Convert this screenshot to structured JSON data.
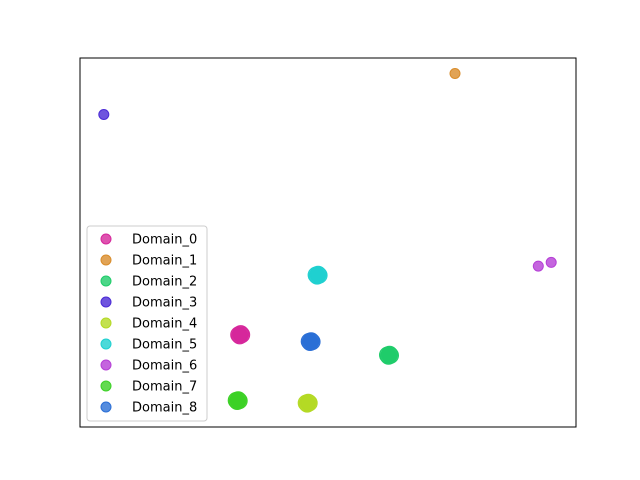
{
  "chart_data": {
    "type": "scatter",
    "title": "",
    "xlabel": "",
    "ylabel": "",
    "axes_ticks_visible": false,
    "grid": false,
    "legend_placement": "lower-left",
    "xlim": [
      0,
      100
    ],
    "ylim": [
      0,
      100
    ],
    "series": [
      {
        "name": "Domain_0",
        "color": "#d6279b",
        "points": [
          [
            32.0,
            25.0
          ],
          [
            32.4,
            25.3
          ],
          [
            32.2,
            24.7
          ],
          [
            32.6,
            25.0
          ]
        ]
      },
      {
        "name": "Domain_1",
        "color": "#d98c2a",
        "points": [
          [
            75.6,
            95.8
          ]
        ]
      },
      {
        "name": "Domain_2",
        "color": "#1fcc6a",
        "points": [
          [
            62.0,
            19.5
          ],
          [
            62.4,
            19.7
          ],
          [
            62.2,
            19.2
          ],
          [
            62.6,
            19.4
          ]
        ]
      },
      {
        "name": "Domain_3",
        "color": "#4b2bd6",
        "points": [
          [
            4.8,
            84.7
          ]
        ]
      },
      {
        "name": "Domain_4",
        "color": "#b4d924",
        "points": [
          [
            45.6,
            6.5
          ],
          [
            46.0,
            6.7
          ],
          [
            45.8,
            6.2
          ],
          [
            46.2,
            6.5
          ]
        ]
      },
      {
        "name": "Domain_5",
        "color": "#1fd0d0",
        "points": [
          [
            47.6,
            41.2
          ],
          [
            48.0,
            41.4
          ],
          [
            47.8,
            40.9
          ],
          [
            48.2,
            41.1
          ]
        ]
      },
      {
        "name": "Domain_6",
        "color": "#b53fd6",
        "points": [
          [
            92.4,
            43.6
          ],
          [
            95.0,
            44.6
          ]
        ]
      },
      {
        "name": "Domain_7",
        "color": "#3cd126",
        "points": [
          [
            31.5,
            7.2
          ],
          [
            31.9,
            7.4
          ],
          [
            31.7,
            6.9
          ],
          [
            32.1,
            7.1
          ]
        ]
      },
      {
        "name": "Domain_8",
        "color": "#2b6fd6",
        "points": [
          [
            46.2,
            23.2
          ],
          [
            46.6,
            23.4
          ],
          [
            46.4,
            22.9
          ],
          [
            46.8,
            23.1
          ]
        ]
      }
    ]
  }
}
